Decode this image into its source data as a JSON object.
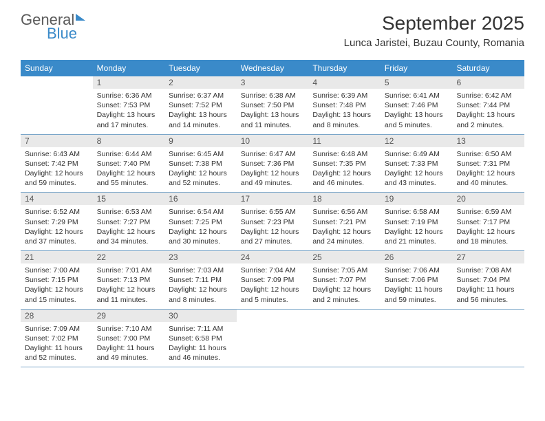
{
  "logo": {
    "text1": "General",
    "text2": "Blue"
  },
  "title": "September 2025",
  "location": "Lunca Jaristei, Buzau County, Romania",
  "colors": {
    "header_bg": "#3a8ac9",
    "daynum_bg": "#e9e9e9",
    "row_border": "#7aa6c9",
    "text": "#333333",
    "logo_gray": "#5a5a5a",
    "logo_blue": "#3a8ac9"
  },
  "dayheads": [
    "Sunday",
    "Monday",
    "Tuesday",
    "Wednesday",
    "Thursday",
    "Friday",
    "Saturday"
  ],
  "weeks": [
    [
      {
        "n": "",
        "sr": "",
        "ss": "",
        "dl": ""
      },
      {
        "n": "1",
        "sr": "Sunrise: 6:36 AM",
        "ss": "Sunset: 7:53 PM",
        "dl": "Daylight: 13 hours and 17 minutes."
      },
      {
        "n": "2",
        "sr": "Sunrise: 6:37 AM",
        "ss": "Sunset: 7:52 PM",
        "dl": "Daylight: 13 hours and 14 minutes."
      },
      {
        "n": "3",
        "sr": "Sunrise: 6:38 AM",
        "ss": "Sunset: 7:50 PM",
        "dl": "Daylight: 13 hours and 11 minutes."
      },
      {
        "n": "4",
        "sr": "Sunrise: 6:39 AM",
        "ss": "Sunset: 7:48 PM",
        "dl": "Daylight: 13 hours and 8 minutes."
      },
      {
        "n": "5",
        "sr": "Sunrise: 6:41 AM",
        "ss": "Sunset: 7:46 PM",
        "dl": "Daylight: 13 hours and 5 minutes."
      },
      {
        "n": "6",
        "sr": "Sunrise: 6:42 AM",
        "ss": "Sunset: 7:44 PM",
        "dl": "Daylight: 13 hours and 2 minutes."
      }
    ],
    [
      {
        "n": "7",
        "sr": "Sunrise: 6:43 AM",
        "ss": "Sunset: 7:42 PM",
        "dl": "Daylight: 12 hours and 59 minutes."
      },
      {
        "n": "8",
        "sr": "Sunrise: 6:44 AM",
        "ss": "Sunset: 7:40 PM",
        "dl": "Daylight: 12 hours and 55 minutes."
      },
      {
        "n": "9",
        "sr": "Sunrise: 6:45 AM",
        "ss": "Sunset: 7:38 PM",
        "dl": "Daylight: 12 hours and 52 minutes."
      },
      {
        "n": "10",
        "sr": "Sunrise: 6:47 AM",
        "ss": "Sunset: 7:36 PM",
        "dl": "Daylight: 12 hours and 49 minutes."
      },
      {
        "n": "11",
        "sr": "Sunrise: 6:48 AM",
        "ss": "Sunset: 7:35 PM",
        "dl": "Daylight: 12 hours and 46 minutes."
      },
      {
        "n": "12",
        "sr": "Sunrise: 6:49 AM",
        "ss": "Sunset: 7:33 PM",
        "dl": "Daylight: 12 hours and 43 minutes."
      },
      {
        "n": "13",
        "sr": "Sunrise: 6:50 AM",
        "ss": "Sunset: 7:31 PM",
        "dl": "Daylight: 12 hours and 40 minutes."
      }
    ],
    [
      {
        "n": "14",
        "sr": "Sunrise: 6:52 AM",
        "ss": "Sunset: 7:29 PM",
        "dl": "Daylight: 12 hours and 37 minutes."
      },
      {
        "n": "15",
        "sr": "Sunrise: 6:53 AM",
        "ss": "Sunset: 7:27 PM",
        "dl": "Daylight: 12 hours and 34 minutes."
      },
      {
        "n": "16",
        "sr": "Sunrise: 6:54 AM",
        "ss": "Sunset: 7:25 PM",
        "dl": "Daylight: 12 hours and 30 minutes."
      },
      {
        "n": "17",
        "sr": "Sunrise: 6:55 AM",
        "ss": "Sunset: 7:23 PM",
        "dl": "Daylight: 12 hours and 27 minutes."
      },
      {
        "n": "18",
        "sr": "Sunrise: 6:56 AM",
        "ss": "Sunset: 7:21 PM",
        "dl": "Daylight: 12 hours and 24 minutes."
      },
      {
        "n": "19",
        "sr": "Sunrise: 6:58 AM",
        "ss": "Sunset: 7:19 PM",
        "dl": "Daylight: 12 hours and 21 minutes."
      },
      {
        "n": "20",
        "sr": "Sunrise: 6:59 AM",
        "ss": "Sunset: 7:17 PM",
        "dl": "Daylight: 12 hours and 18 minutes."
      }
    ],
    [
      {
        "n": "21",
        "sr": "Sunrise: 7:00 AM",
        "ss": "Sunset: 7:15 PM",
        "dl": "Daylight: 12 hours and 15 minutes."
      },
      {
        "n": "22",
        "sr": "Sunrise: 7:01 AM",
        "ss": "Sunset: 7:13 PM",
        "dl": "Daylight: 12 hours and 11 minutes."
      },
      {
        "n": "23",
        "sr": "Sunrise: 7:03 AM",
        "ss": "Sunset: 7:11 PM",
        "dl": "Daylight: 12 hours and 8 minutes."
      },
      {
        "n": "24",
        "sr": "Sunrise: 7:04 AM",
        "ss": "Sunset: 7:09 PM",
        "dl": "Daylight: 12 hours and 5 minutes."
      },
      {
        "n": "25",
        "sr": "Sunrise: 7:05 AM",
        "ss": "Sunset: 7:07 PM",
        "dl": "Daylight: 12 hours and 2 minutes."
      },
      {
        "n": "26",
        "sr": "Sunrise: 7:06 AM",
        "ss": "Sunset: 7:06 PM",
        "dl": "Daylight: 11 hours and 59 minutes."
      },
      {
        "n": "27",
        "sr": "Sunrise: 7:08 AM",
        "ss": "Sunset: 7:04 PM",
        "dl": "Daylight: 11 hours and 56 minutes."
      }
    ],
    [
      {
        "n": "28",
        "sr": "Sunrise: 7:09 AM",
        "ss": "Sunset: 7:02 PM",
        "dl": "Daylight: 11 hours and 52 minutes."
      },
      {
        "n": "29",
        "sr": "Sunrise: 7:10 AM",
        "ss": "Sunset: 7:00 PM",
        "dl": "Daylight: 11 hours and 49 minutes."
      },
      {
        "n": "30",
        "sr": "Sunrise: 7:11 AM",
        "ss": "Sunset: 6:58 PM",
        "dl": "Daylight: 11 hours and 46 minutes."
      },
      {
        "n": "",
        "sr": "",
        "ss": "",
        "dl": ""
      },
      {
        "n": "",
        "sr": "",
        "ss": "",
        "dl": ""
      },
      {
        "n": "",
        "sr": "",
        "ss": "",
        "dl": ""
      },
      {
        "n": "",
        "sr": "",
        "ss": "",
        "dl": ""
      }
    ]
  ]
}
